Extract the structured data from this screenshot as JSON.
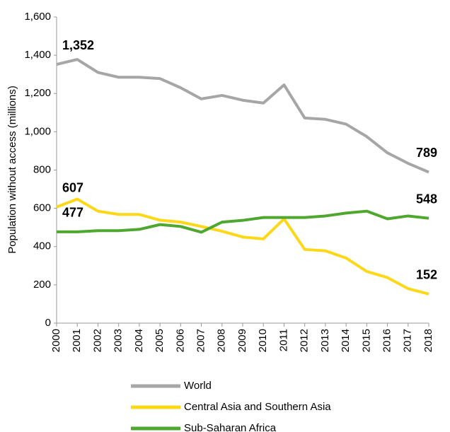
{
  "chart_data": {
    "type": "line",
    "y_label": "Population without access (millions)",
    "categories": [
      "2000",
      "2001",
      "2002",
      "2003",
      "2004",
      "2005",
      "2006",
      "2007",
      "2008",
      "2009",
      "2010",
      "2011",
      "2012",
      "2013",
      "2014",
      "2015",
      "2016",
      "2017",
      "2018"
    ],
    "series": [
      {
        "name": "World",
        "color": "#a6a6a6",
        "values": [
          1352,
          1378,
          1310,
          1285,
          1285,
          1278,
          1230,
          1172,
          1190,
          1165,
          1150,
          1245,
          1072,
          1065,
          1040,
          975,
          890,
          835,
          789
        ],
        "value_labels": [
          "1,352",
          null,
          null,
          null,
          null,
          null,
          null,
          null,
          null,
          null,
          null,
          null,
          null,
          null,
          null,
          null,
          null,
          null,
          "789"
        ]
      },
      {
        "name": "Central Asia and Southern Asia",
        "color": "#fdd819",
        "values": [
          607,
          648,
          585,
          568,
          568,
          538,
          528,
          505,
          480,
          450,
          440,
          545,
          385,
          378,
          340,
          270,
          238,
          180,
          152
        ],
        "value_labels": [
          "607",
          null,
          null,
          null,
          null,
          null,
          null,
          null,
          null,
          null,
          null,
          null,
          null,
          null,
          null,
          null,
          null,
          null,
          "152"
        ]
      },
      {
        "name": "Sub-Saharan Africa",
        "color": "#4ea72e",
        "values": [
          477,
          477,
          483,
          483,
          490,
          515,
          505,
          475,
          528,
          537,
          552,
          552,
          552,
          560,
          575,
          585,
          545,
          560,
          548
        ],
        "value_labels": [
          "477",
          null,
          null,
          null,
          null,
          null,
          null,
          null,
          null,
          null,
          null,
          null,
          null,
          null,
          null,
          null,
          null,
          null,
          "548"
        ]
      }
    ],
    "ylim": [
      0,
      1600
    ],
    "yticks": [
      0,
      200,
      400,
      600,
      800,
      {
        "value": 1000,
        "label": "1,000"
      },
      {
        "value": 1200,
        "label": "1,200"
      },
      {
        "value": 1400,
        "label": "1,400"
      },
      {
        "value": 1600,
        "label": "1,600"
      }
    ],
    "grid": false
  }
}
